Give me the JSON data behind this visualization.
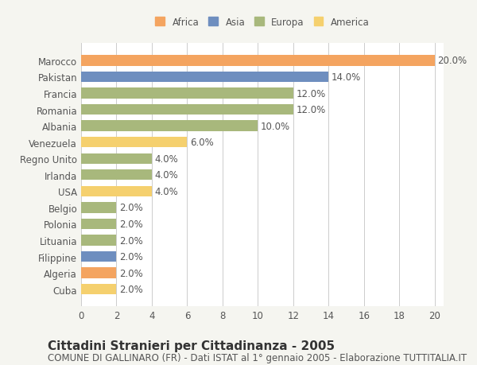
{
  "categories": [
    "Marocco",
    "Pakistan",
    "Francia",
    "Romania",
    "Albania",
    "Venezuela",
    "Regno Unito",
    "Irlanda",
    "USA",
    "Belgio",
    "Polonia",
    "Lituania",
    "Filippine",
    "Algeria",
    "Cuba"
  ],
  "values": [
    20.0,
    14.0,
    12.0,
    12.0,
    10.0,
    6.0,
    4.0,
    4.0,
    4.0,
    2.0,
    2.0,
    2.0,
    2.0,
    2.0,
    2.0
  ],
  "continents": [
    "Africa",
    "Asia",
    "Europa",
    "Europa",
    "Europa",
    "America",
    "Europa",
    "Europa",
    "America",
    "Europa",
    "Europa",
    "Europa",
    "Asia",
    "Africa",
    "America"
  ],
  "continent_colors": {
    "Africa": "#F4A460",
    "Asia": "#6E8EBF",
    "Europa": "#A8B87C",
    "America": "#F5D06E"
  },
  "legend_order": [
    "Africa",
    "Asia",
    "Europa",
    "America"
  ],
  "title": "Cittadini Stranieri per Cittadinanza - 2005",
  "subtitle": "COMUNE DI GALLINARO (FR) - Dati ISTAT al 1° gennaio 2005 - Elaborazione TUTTITALIA.IT",
  "xlim": [
    0,
    20
  ],
  "xticks": [
    0,
    2,
    4,
    6,
    8,
    10,
    12,
    14,
    16,
    18,
    20
  ],
  "background_color": "#f5f5f0",
  "plot_background": "#ffffff",
  "grid_color": "#cccccc",
  "title_fontsize": 11,
  "subtitle_fontsize": 8.5,
  "label_fontsize": 8.5,
  "tick_fontsize": 8.5
}
